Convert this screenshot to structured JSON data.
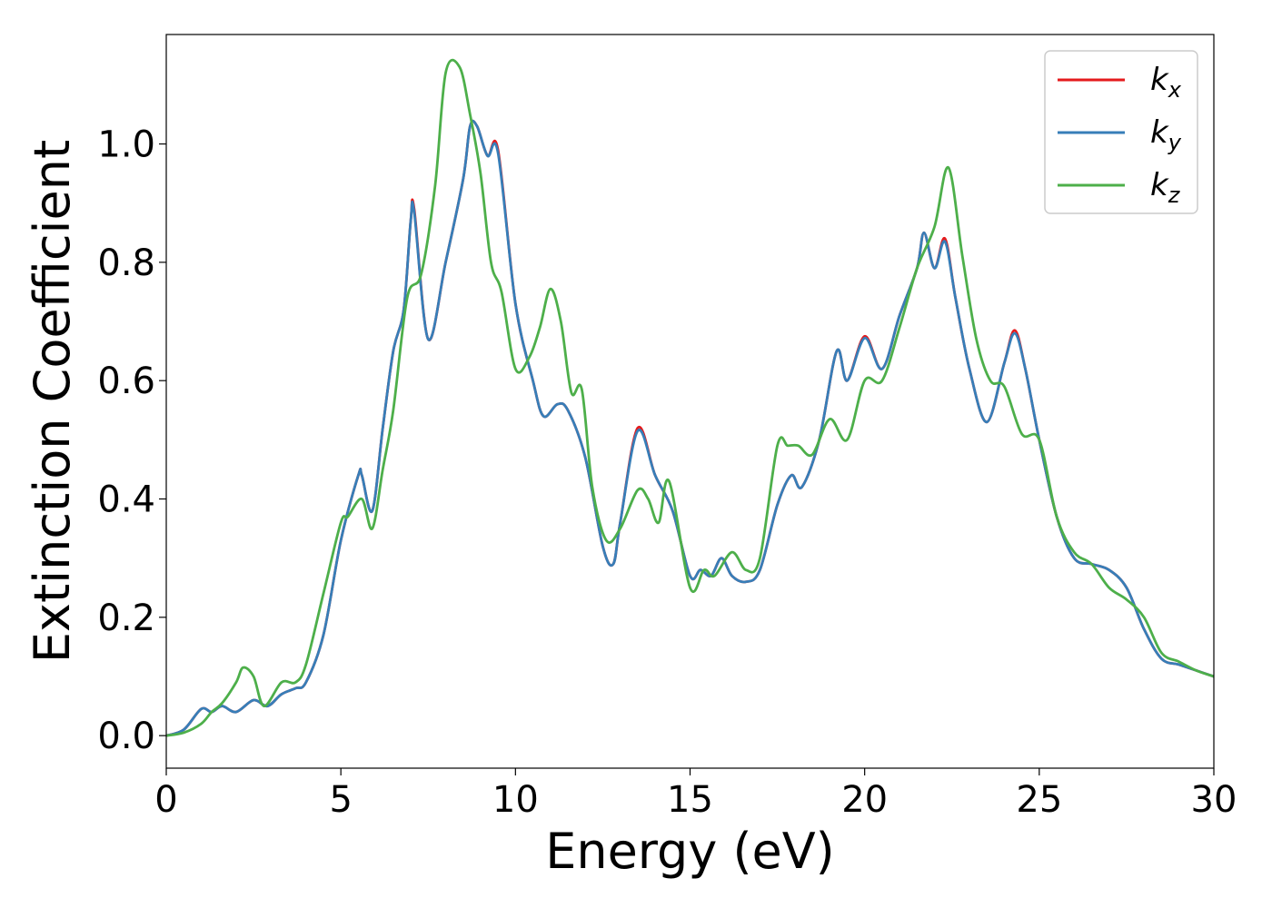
{
  "chart_data": {
    "type": "line",
    "title": "",
    "xlabel": "Energy (eV)",
    "ylabel": "Extinction Coefficient",
    "xlim": [
      0,
      30
    ],
    "ylim": [
      -0.055,
      1.185
    ],
    "xticks": [
      "0",
      "5",
      "10",
      "15",
      "20",
      "25",
      "30"
    ],
    "yticks": [
      "0.0",
      "0.2",
      "0.4",
      "0.6",
      "0.8",
      "1.0"
    ],
    "xtick_values": [
      0,
      5,
      10,
      15,
      20,
      25,
      30
    ],
    "ytick_values": [
      0.0,
      0.2,
      0.4,
      0.6,
      0.8,
      1.0
    ],
    "grid": false,
    "legend": "top-right",
    "series": [
      {
        "name": "k",
        "subscript": "x",
        "color": "#e41a1c",
        "x": [
          0,
          0.5,
          1.0,
          1.3,
          1.6,
          2.0,
          2.5,
          2.9,
          3.3,
          3.7,
          4.0,
          4.5,
          5.0,
          5.5,
          5.6,
          5.9,
          6.2,
          6.5,
          6.8,
          7.0,
          7.1,
          7.5,
          8.0,
          8.5,
          8.7,
          8.9,
          9.2,
          9.5,
          10.0,
          10.5,
          10.8,
          11.2,
          11.5,
          12.0,
          12.5,
          12.8,
          13.0,
          13.5,
          14.0,
          14.5,
          15.0,
          15.3,
          15.6,
          15.9,
          16.2,
          16.6,
          17.0,
          17.5,
          17.9,
          18.2,
          18.7,
          19.2,
          19.5,
          20.0,
          20.5,
          21.0,
          21.5,
          21.7,
          22.0,
          22.3,
          22.6,
          23.0,
          23.5,
          24.0,
          24.3,
          24.6,
          25.0,
          25.5,
          26.0,
          26.5,
          27.0,
          27.5,
          28.0,
          28.5,
          29.0,
          29.5,
          30.0
        ],
        "y": [
          0.0,
          0.01,
          0.045,
          0.04,
          0.05,
          0.04,
          0.06,
          0.05,
          0.07,
          0.08,
          0.09,
          0.17,
          0.33,
          0.44,
          0.44,
          0.38,
          0.52,
          0.65,
          0.72,
          0.87,
          0.89,
          0.67,
          0.8,
          0.94,
          1.03,
          1.03,
          0.98,
          0.99,
          0.73,
          0.6,
          0.54,
          0.56,
          0.55,
          0.47,
          0.32,
          0.29,
          0.36,
          0.52,
          0.44,
          0.38,
          0.27,
          0.28,
          0.27,
          0.3,
          0.27,
          0.26,
          0.28,
          0.39,
          0.44,
          0.42,
          0.5,
          0.65,
          0.6,
          0.675,
          0.62,
          0.71,
          0.79,
          0.85,
          0.79,
          0.84,
          0.74,
          0.62,
          0.53,
          0.63,
          0.685,
          0.62,
          0.5,
          0.37,
          0.3,
          0.29,
          0.28,
          0.25,
          0.18,
          0.13,
          0.12,
          0.11,
          0.1
        ]
      },
      {
        "name": "k",
        "subscript": "y",
        "color": "#377eb8",
        "x": [
          0,
          0.5,
          1.0,
          1.3,
          1.6,
          2.0,
          2.5,
          2.9,
          3.3,
          3.7,
          4.0,
          4.5,
          5.0,
          5.5,
          5.6,
          5.9,
          6.2,
          6.5,
          6.8,
          7.0,
          7.1,
          7.5,
          8.0,
          8.5,
          8.7,
          8.9,
          9.2,
          9.5,
          10.0,
          10.5,
          10.8,
          11.2,
          11.5,
          12.0,
          12.5,
          12.8,
          13.0,
          13.5,
          14.0,
          14.5,
          15.0,
          15.3,
          15.6,
          15.9,
          16.2,
          16.6,
          17.0,
          17.5,
          17.9,
          18.2,
          18.7,
          19.2,
          19.5,
          20.0,
          20.5,
          21.0,
          21.5,
          21.7,
          22.0,
          22.3,
          22.6,
          23.0,
          23.5,
          24.0,
          24.3,
          24.6,
          25.0,
          25.5,
          26.0,
          26.5,
          27.0,
          27.5,
          28.0,
          28.5,
          29.0,
          29.5,
          30.0
        ],
        "y": [
          0.0,
          0.01,
          0.045,
          0.04,
          0.05,
          0.04,
          0.06,
          0.05,
          0.07,
          0.08,
          0.09,
          0.17,
          0.33,
          0.44,
          0.44,
          0.38,
          0.52,
          0.65,
          0.72,
          0.87,
          0.885,
          0.67,
          0.8,
          0.94,
          1.03,
          1.03,
          0.98,
          0.985,
          0.73,
          0.6,
          0.54,
          0.56,
          0.55,
          0.47,
          0.32,
          0.29,
          0.36,
          0.515,
          0.44,
          0.38,
          0.27,
          0.28,
          0.27,
          0.3,
          0.27,
          0.26,
          0.28,
          0.39,
          0.44,
          0.42,
          0.5,
          0.65,
          0.6,
          0.672,
          0.62,
          0.71,
          0.79,
          0.85,
          0.79,
          0.835,
          0.74,
          0.62,
          0.53,
          0.63,
          0.68,
          0.62,
          0.5,
          0.37,
          0.3,
          0.29,
          0.28,
          0.25,
          0.18,
          0.13,
          0.12,
          0.11,
          0.1
        ]
      },
      {
        "name": "k",
        "subscript": "z",
        "color": "#4daf4a",
        "x": [
          0,
          0.5,
          1.0,
          1.3,
          1.6,
          2.0,
          2.2,
          2.5,
          2.8,
          3.3,
          3.7,
          4.0,
          4.5,
          5.0,
          5.2,
          5.6,
          5.9,
          6.2,
          6.5,
          6.9,
          7.3,
          7.7,
          8.0,
          8.4,
          8.7,
          9.0,
          9.3,
          9.6,
          10.0,
          10.4,
          10.7,
          11.0,
          11.3,
          11.6,
          11.9,
          12.2,
          12.6,
          13.0,
          13.5,
          13.8,
          14.1,
          14.4,
          15.0,
          15.4,
          15.7,
          16.2,
          16.6,
          17.0,
          17.5,
          17.8,
          18.1,
          18.5,
          19.0,
          19.5,
          20.0,
          20.5,
          21.0,
          21.5,
          22.0,
          22.4,
          22.8,
          23.2,
          23.6,
          24.0,
          24.5,
          25.0,
          25.5,
          26.0,
          26.5,
          27.0,
          27.5,
          28.0,
          28.5,
          29.0,
          29.5,
          30.0
        ],
        "y": [
          0.0,
          0.005,
          0.02,
          0.04,
          0.055,
          0.09,
          0.115,
          0.1,
          0.05,
          0.09,
          0.09,
          0.12,
          0.24,
          0.36,
          0.37,
          0.4,
          0.35,
          0.45,
          0.55,
          0.74,
          0.78,
          0.93,
          1.12,
          1.13,
          1.05,
          0.95,
          0.8,
          0.75,
          0.62,
          0.64,
          0.69,
          0.755,
          0.7,
          0.58,
          0.585,
          0.42,
          0.33,
          0.35,
          0.415,
          0.4,
          0.36,
          0.43,
          0.25,
          0.28,
          0.27,
          0.31,
          0.28,
          0.3,
          0.49,
          0.49,
          0.49,
          0.475,
          0.535,
          0.5,
          0.6,
          0.6,
          0.69,
          0.79,
          0.86,
          0.96,
          0.81,
          0.67,
          0.6,
          0.59,
          0.51,
          0.5,
          0.37,
          0.31,
          0.29,
          0.25,
          0.23,
          0.2,
          0.14,
          0.125,
          0.11,
          0.1
        ]
      }
    ]
  }
}
